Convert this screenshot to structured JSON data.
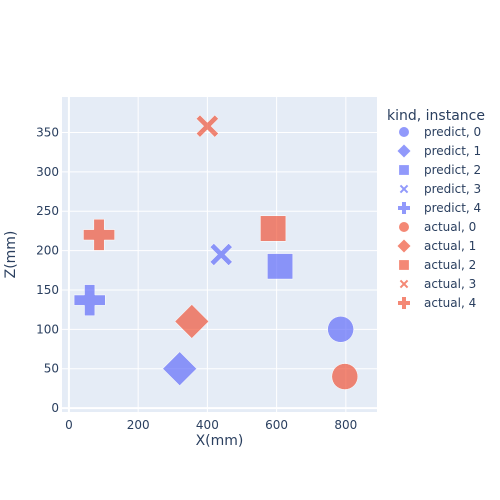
{
  "chart_data": {
    "type": "scatter",
    "xlabel": "X(mm)",
    "ylabel": "Z(mm)",
    "xlim": [
      -20,
      890
    ],
    "ylim": [
      -5,
      395
    ],
    "xticks": [
      0,
      200,
      400,
      600,
      800
    ],
    "yticks": [
      0,
      50,
      100,
      150,
      200,
      250,
      300,
      350
    ],
    "grid": true,
    "legend": {
      "title": "kind, instance",
      "placement": "right"
    },
    "series": [
      {
        "name": "predict, 0",
        "kind": "predict",
        "symbol": "circle",
        "color": "#636efa",
        "x": [
          785
        ],
        "y": [
          100
        ]
      },
      {
        "name": "predict, 1",
        "kind": "predict",
        "symbol": "diamond",
        "color": "#636efa",
        "x": [
          320
        ],
        "y": [
          50
        ]
      },
      {
        "name": "predict, 2",
        "kind": "predict",
        "symbol": "square",
        "color": "#636efa",
        "x": [
          610
        ],
        "y": [
          180
        ]
      },
      {
        "name": "predict, 3",
        "kind": "predict",
        "symbol": "x",
        "color": "#636efa",
        "x": [
          440
        ],
        "y": [
          195
        ]
      },
      {
        "name": "predict, 4",
        "kind": "predict",
        "symbol": "cross",
        "color": "#636efa",
        "x": [
          60
        ],
        "y": [
          137
        ]
      },
      {
        "name": "actual, 0",
        "kind": "actual",
        "symbol": "circle",
        "color": "#ef553b",
        "x": [
          797
        ],
        "y": [
          40
        ]
      },
      {
        "name": "actual, 1",
        "kind": "actual",
        "symbol": "diamond",
        "color": "#ef553b",
        "x": [
          355
        ],
        "y": [
          110
        ]
      },
      {
        "name": "actual, 2",
        "kind": "actual",
        "symbol": "square",
        "color": "#ef553b",
        "x": [
          590
        ],
        "y": [
          228
        ]
      },
      {
        "name": "actual, 3",
        "kind": "actual",
        "symbol": "x",
        "color": "#ef553b",
        "x": [
          400
        ],
        "y": [
          358
        ]
      },
      {
        "name": "actual, 4",
        "kind": "actual",
        "symbol": "cross",
        "color": "#ef553b",
        "x": [
          87
        ],
        "y": [
          220
        ]
      }
    ]
  }
}
